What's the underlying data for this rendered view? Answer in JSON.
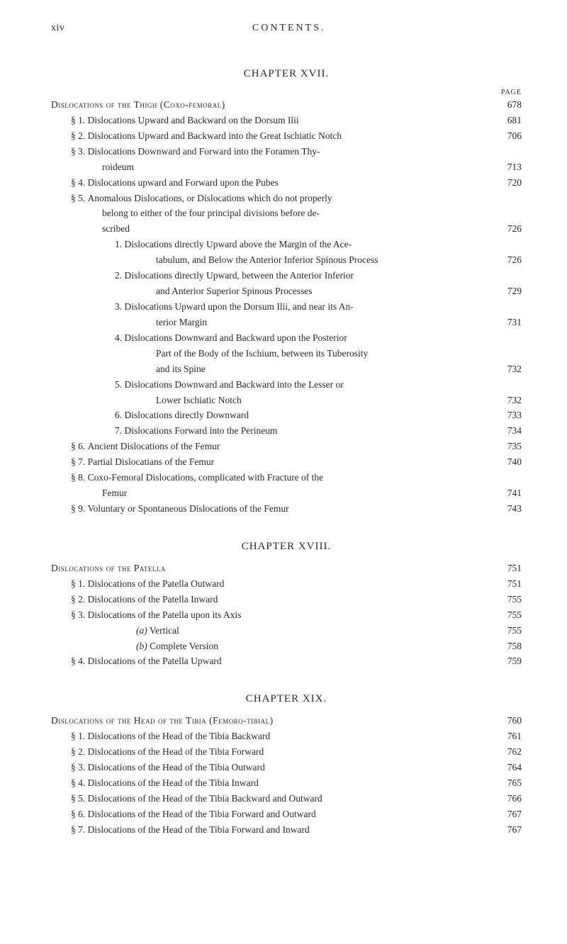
{
  "header": {
    "left": "xiv",
    "center": "CONTENTS."
  },
  "page_label": "page",
  "chapters": [
    {
      "title": "CHAPTER XVII.",
      "entries": [
        {
          "indent": 0,
          "label": "",
          "text_sc": "Dislocations of the Thigh (Coxo-femoral)",
          "page": "678"
        },
        {
          "indent": 1,
          "label": "§ 1. ",
          "text": "Dislocations Upward and Backward on the Dorsum Ilii",
          "page": "681"
        },
        {
          "indent": 1,
          "label": "§ 2. ",
          "text": "Dislocations Upward and Backward into the Great Ischiatic Notch",
          "page": "706"
        },
        {
          "indent": 1,
          "label": "§ 3. ",
          "text": "Dislocations Downward and Forward into the Foramen Thy-",
          "nowrap_page": true
        },
        {
          "cont": 1,
          "text": "roideum",
          "page": "713"
        },
        {
          "indent": 1,
          "label": "§ 4. ",
          "text": "Dislocations upward and Forward upon the Pubes",
          "page": "720"
        },
        {
          "indent": 1,
          "label": "§ 5. ",
          "text": "Anomalous Dislocations, or Dislocations which do not properly",
          "nowrap_page": true
        },
        {
          "cont": 1,
          "text": "belong to either of the four principal divisions before de-",
          "nowrap_page": true
        },
        {
          "cont": 1,
          "text": "scribed",
          "page": "726"
        },
        {
          "indent": 2,
          "label": "1. ",
          "text": "Dislocations directly Upward above the Margin of the Ace-",
          "nowrap_page": true
        },
        {
          "cont": 2,
          "text": "tabulum, and Below the Anterior Inferior Spinous Process",
          "page": "726"
        },
        {
          "indent": 2,
          "label": "2. ",
          "text": "Dislocations directly Upward, between the Anterior Inferior",
          "nowrap_page": true
        },
        {
          "cont": 2,
          "text": "and Anterior Superior Spinous Processes",
          "page": "729"
        },
        {
          "indent": 2,
          "label": "3. ",
          "text": "Dislocations Upward upon the Dorsum Ilii, and near its An-",
          "nowrap_page": true
        },
        {
          "cont": 2,
          "text": "terior Margin",
          "page": "731"
        },
        {
          "indent": 2,
          "label": "4. ",
          "text": "Dislocations Downward and Backward upon the Posterior",
          "nowrap_page": true
        },
        {
          "cont": 2,
          "text": "Part of the Body of the Ischium, between its Tuberosity",
          "nowrap_page": true
        },
        {
          "cont": 2,
          "text": "and its Spine",
          "page": "732"
        },
        {
          "indent": 2,
          "label": "5. ",
          "text": "Dislocations Downward and Backward into the Lesser or",
          "nowrap_page": true
        },
        {
          "cont": 2,
          "text": "Lower Ischiatic Notch",
          "page": "732"
        },
        {
          "indent": 2,
          "label": "6. ",
          "text": "Dislocations directly Downward",
          "page": "733"
        },
        {
          "indent": 2,
          "label": "7. ",
          "text": "Dislocations Forward into the Perineum",
          "page": "734"
        },
        {
          "indent": 1,
          "label": "§ 6. ",
          "text": "Ancient Dislocations of the Femur",
          "page": "735"
        },
        {
          "indent": 1,
          "label": "§ 7. ",
          "text": "Partial Dislocatians of the Femur",
          "page": "740"
        },
        {
          "indent": 1,
          "label": "§ 8. ",
          "text": "Coxo-Femoral Dislocations, complicated with Fracture of the",
          "nowrap_page": true
        },
        {
          "cont": 1,
          "text": "Femur",
          "page": "741"
        },
        {
          "indent": 1,
          "label": "§ 9. ",
          "text": "Voluntary or Spontaneous Dislocations of the Femur",
          "page": "743"
        }
      ]
    },
    {
      "title": "CHAPTER XVIII.",
      "entries": [
        {
          "indent": 0,
          "label": "",
          "text_sc": "Dislocations of the Patella",
          "page": "751"
        },
        {
          "indent": 1,
          "label": "§ 1. ",
          "text": "Dislocations of the Patella Outward",
          "page": "751"
        },
        {
          "indent": 1,
          "label": "§ 2. ",
          "text": "Dislocations of the Patella Inward",
          "page": "755"
        },
        {
          "indent": 1,
          "label": "§ 3. ",
          "text": "Dislocations of the Patella upon its Axis",
          "page": "755"
        },
        {
          "indent": 3,
          "label": "",
          "text_italic_a": "(a)",
          "text": " Vertical",
          "page": "755"
        },
        {
          "indent": 3,
          "label": "",
          "text_italic_a": "(b)",
          "text": " Complete Version",
          "page": "758"
        },
        {
          "indent": 1,
          "label": "§ 4. ",
          "text": "Dislocations of the Patella Upward",
          "page": "759"
        }
      ]
    },
    {
      "title": "CHAPTER XIX.",
      "entries": [
        {
          "indent": 0,
          "label": "",
          "text_sc": "Dislocations of the Head of the Tibia (Femoro-tibial)",
          "page": "760"
        },
        {
          "indent": 1,
          "label": "§ 1. ",
          "text": "Dislocations of the Head of the Tibia Backward",
          "page": "761"
        },
        {
          "indent": 1,
          "label": "§ 2. ",
          "text": "Dislocations of the Head of the Tibia Forward",
          "page": "762"
        },
        {
          "indent": 1,
          "label": "§ 3. ",
          "text": "Dislocations of the Head of the Tibia Outward",
          "page": "764"
        },
        {
          "indent": 1,
          "label": "§ 4. ",
          "text": "Dislocations of the Head of the Tibia Inward",
          "page": "765"
        },
        {
          "indent": 1,
          "label": "§ 5. ",
          "text": "Dislocations of the Head of the Tibia Backward and Outward",
          "page": "766"
        },
        {
          "indent": 1,
          "label": "§ 6. ",
          "text": "Dislocations of the Head of the Tibia Forward and Outward",
          "page": "767"
        },
        {
          "indent": 1,
          "label": "§ 7. ",
          "text": "Dislocations of the Head of the Tibia Forward and Inward",
          "page": "767"
        }
      ]
    }
  ]
}
